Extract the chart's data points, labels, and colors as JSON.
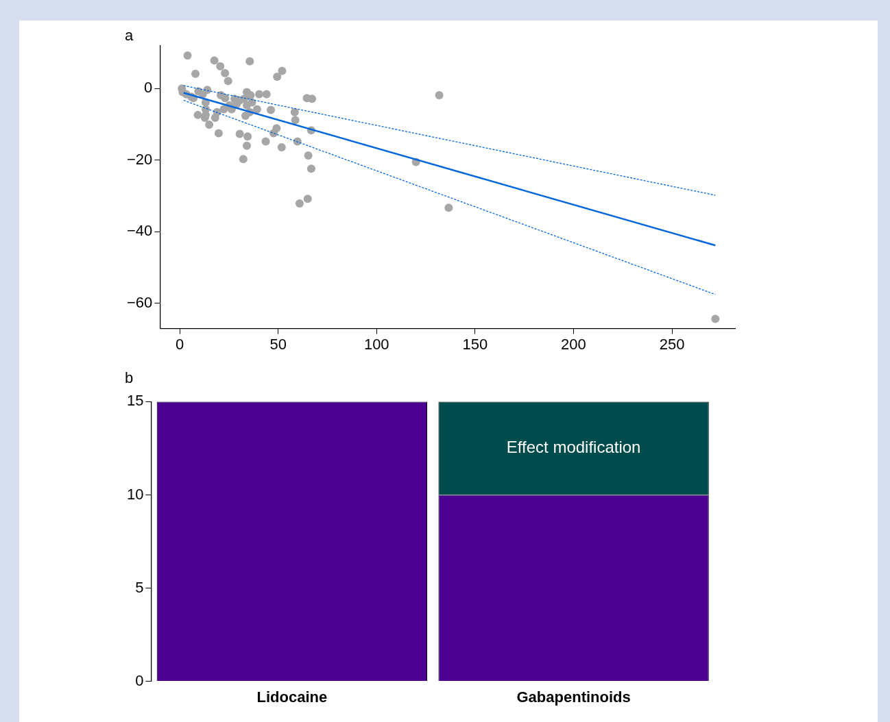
{
  "chart_data": [
    {
      "type": "scatter",
      "title": "a",
      "xlim": [
        -10,
        282
      ],
      "ylim": [
        -67,
        12
      ],
      "xticks": [
        0,
        50,
        100,
        150,
        200,
        250
      ],
      "yticks": [
        {
          "value": -60,
          "label": "−60"
        },
        {
          "value": -40,
          "label": "−40"
        },
        {
          "value": -20,
          "label": "−20"
        },
        0
      ],
      "grid": false,
      "legend": false,
      "series": [
        {
          "type": "scatter",
          "color": "#a6a6a6",
          "marker": "circle",
          "x": [
            4,
            17.6,
            20.6,
            23,
            24.6,
            8,
            35.6,
            52,
            49.5,
            131.8,
            64.6,
            67.2,
            1.1,
            1.5,
            3.3,
            5.9,
            9.5,
            11.7,
            14,
            13.2,
            13.2,
            13.2,
            9.2,
            12.8,
            15,
            18,
            19,
            19.8,
            20.9,
            23.1,
            26.4,
            27.9,
            30.5,
            32.7,
            34.1,
            36,
            34.1,
            36.7,
            33.4,
            39.3,
            40.4,
            44.1,
            46.3,
            30.5,
            34.5,
            34.1,
            32.3,
            43.7,
            47.7,
            49.2,
            51.8,
            58.4,
            58.7,
            59.8,
            66.8,
            65.3,
            66.8,
            65,
            60.9,
            120,
            136.6,
            272,
            7,
            25.3,
            22.4,
            29,
            35.6
          ],
          "values": [
            9.2,
            7.8,
            6.2,
            4.3,
            2.1,
            4.1,
            7.6,
            4.9,
            3.3,
            -1.9,
            -2.7,
            -2.9,
            0,
            -1,
            -1.6,
            -2.3,
            -0.8,
            -1.6,
            -0.4,
            -3.9,
            -5.8,
            -7.4,
            -7.4,
            -8.2,
            -10.1,
            -8.2,
            -6.6,
            -12.5,
            -1.9,
            -2.7,
            -5.8,
            -2.9,
            -3.3,
            -2.9,
            -1,
            -1.9,
            -4.7,
            -3.9,
            -7.6,
            -5.8,
            -1.6,
            -1.6,
            -6,
            -12.7,
            -13.4,
            -16,
            -19.7,
            -14.8,
            -12.5,
            -11.1,
            -16.4,
            -6.6,
            -8.8,
            -14.8,
            -11.7,
            -18.7,
            -22.4,
            -30.8,
            -32.1,
            -20.5,
            -33.3,
            -64.3,
            -2.7,
            -4.7,
            -5.8,
            -4.3,
            -6.6
          ]
        },
        {
          "type": "line",
          "color": "#0066dd",
          "line_style": "solid",
          "marker": "none",
          "x": [
            2,
            272
          ],
          "values": [
            -1.2,
            -43.8
          ]
        },
        {
          "type": "line",
          "color": "#0066dd",
          "line_style": "dashed",
          "marker": "none",
          "x": [
            2,
            272
          ],
          "values": [
            0.8,
            -29.8
          ]
        },
        {
          "type": "line",
          "color": "#0066dd",
          "line_style": "dashed",
          "marker": "none",
          "x": [
            2,
            272
          ],
          "values": [
            -3.3,
            -57.5
          ]
        }
      ]
    },
    {
      "type": "bar",
      "title": "b",
      "stacked": true,
      "categories": [
        "Lidocaine",
        "Gabapentinoids"
      ],
      "ylim": [
        0,
        15
      ],
      "yticks": [
        0,
        5,
        10,
        15
      ],
      "grid": false,
      "legend": false,
      "series": [
        {
          "color": "#4b0092",
          "values": [
            15,
            10
          ]
        },
        {
          "name": "Effect modification",
          "color": "#004b4b",
          "values": [
            0,
            5
          ]
        }
      ]
    }
  ]
}
